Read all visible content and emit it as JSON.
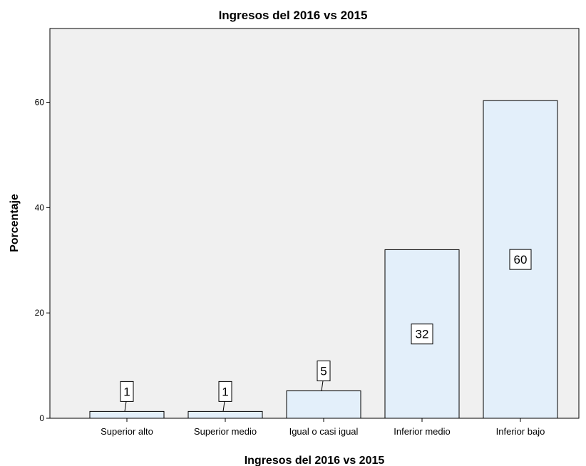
{
  "chart_data": {
    "type": "bar",
    "title": "Ingresos del 2016 vs 2015",
    "xlabel": "Ingresos del 2016 vs 2015",
    "ylabel": "Porcentaje",
    "categories": [
      "Superior alto",
      "Superior medio",
      "Igual o casi igual",
      "Inferior medio",
      "Inferior bajo"
    ],
    "values": [
      1.3,
      1.3,
      5.2,
      32.0,
      60.3
    ],
    "data_labels": [
      "1",
      "1",
      "5",
      "32",
      "60"
    ],
    "yticks": [
      0,
      20,
      40,
      60
    ],
    "ylim": [
      0,
      74
    ],
    "grid": false,
    "legend": "none",
    "colors": {
      "plot_background": "#f0f0f0",
      "bar_fill": "#e3effa",
      "bar_stroke": "#000000",
      "label_box_fill": "#ffffff"
    }
  }
}
